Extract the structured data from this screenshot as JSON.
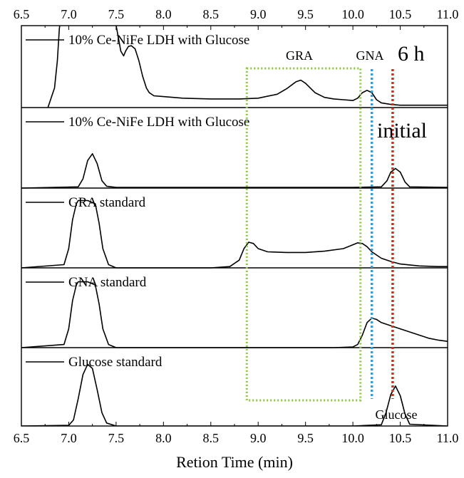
{
  "chart_data": {
    "type": "line",
    "xlabel": "Retion Time (min)",
    "xlim": [
      6.5,
      11.0
    ],
    "xticks": [
      "6.5",
      "7.0",
      "7.5",
      "8.0",
      "8.5",
      "9.0",
      "9.5",
      "10.0",
      "10.5",
      "11.0"
    ],
    "grid": false,
    "panels": [
      {
        "legend": "10% Ce-NiFe LDH with Glucose",
        "tag": "6 h",
        "annotations": [
          "GRA",
          "GNA"
        ],
        "x": [
          6.78,
          6.85,
          6.88,
          6.9,
          6.92,
          7.0,
          7.2,
          7.4,
          7.5,
          7.55,
          7.58,
          7.6,
          7.63,
          7.66,
          7.7,
          7.74,
          7.78,
          7.82,
          7.85,
          7.9,
          8.0,
          8.2,
          8.5,
          8.8,
          9.0,
          9.2,
          9.3,
          9.4,
          9.45,
          9.5,
          9.6,
          9.7,
          9.8,
          9.9,
          10.0,
          10.05,
          10.1,
          10.15,
          10.2,
          10.25,
          10.3,
          10.4,
          10.5,
          10.7,
          11.0
        ],
        "y": [
          0.0,
          0.25,
          0.6,
          1.0,
          1.2,
          1.35,
          1.3,
          1.2,
          1.05,
          0.72,
          0.66,
          0.72,
          0.78,
          0.79,
          0.75,
          0.6,
          0.4,
          0.25,
          0.19,
          0.15,
          0.14,
          0.12,
          0.11,
          0.11,
          0.12,
          0.17,
          0.24,
          0.33,
          0.35,
          0.31,
          0.19,
          0.13,
          0.11,
          0.1,
          0.09,
          0.12,
          0.19,
          0.22,
          0.19,
          0.1,
          0.06,
          0.04,
          0.03,
          0.03,
          0.03
        ]
      },
      {
        "legend": "10% Ce-NiFe LDH with Glucose",
        "tag": "initial",
        "x": [
          6.5,
          7.1,
          7.15,
          7.2,
          7.25,
          7.3,
          7.35,
          7.4,
          7.5,
          8.0,
          9.0,
          10.0,
          10.3,
          10.36,
          10.4,
          10.45,
          10.5,
          10.55,
          10.6,
          11.0
        ],
        "y": [
          0.0,
          0.02,
          0.15,
          0.45,
          0.56,
          0.4,
          0.12,
          0.03,
          0.01,
          0.01,
          0.01,
          0.01,
          0.02,
          0.12,
          0.26,
          0.32,
          0.26,
          0.1,
          0.02,
          0.01
        ]
      },
      {
        "legend": "GRA standard",
        "x": [
          6.5,
          6.95,
          7.0,
          7.04,
          7.08,
          7.1,
          7.2,
          7.28,
          7.32,
          7.36,
          7.42,
          7.5,
          8.0,
          8.5,
          8.7,
          8.8,
          8.85,
          8.9,
          8.95,
          9.0,
          9.1,
          9.3,
          9.5,
          9.7,
          9.9,
          10.0,
          10.05,
          10.1,
          10.15,
          10.2,
          10.3,
          10.4,
          10.5,
          10.7,
          10.9,
          11.0
        ],
        "y": [
          0.0,
          0.05,
          0.3,
          0.75,
          1.0,
          1.05,
          1.05,
          1.0,
          0.7,
          0.3,
          0.05,
          0.0,
          0.0,
          0.0,
          0.02,
          0.12,
          0.3,
          0.4,
          0.38,
          0.3,
          0.25,
          0.24,
          0.24,
          0.26,
          0.3,
          0.36,
          0.39,
          0.38,
          0.33,
          0.25,
          0.15,
          0.1,
          0.06,
          0.03,
          0.02,
          0.02
        ]
      },
      {
        "legend": "GNA standard",
        "x": [
          6.5,
          6.95,
          7.0,
          7.04,
          7.08,
          7.1,
          7.2,
          7.28,
          7.32,
          7.36,
          7.42,
          7.5,
          8.0,
          9.0,
          9.8,
          10.0,
          10.05,
          10.1,
          10.15,
          10.2,
          10.25,
          10.3,
          10.4,
          10.5,
          10.6,
          10.7,
          10.8,
          10.9,
          11.0
        ],
        "y": [
          0.0,
          0.05,
          0.3,
          0.75,
          1.0,
          1.05,
          1.05,
          1.0,
          0.7,
          0.3,
          0.05,
          0.0,
          0.0,
          0.0,
          0.0,
          0.01,
          0.05,
          0.2,
          0.4,
          0.47,
          0.45,
          0.4,
          0.35,
          0.3,
          0.25,
          0.2,
          0.15,
          0.12,
          0.1
        ]
      },
      {
        "legend": "Glucose standard",
        "annotations": [
          "Glucose"
        ],
        "x": [
          6.5,
          7.0,
          7.05,
          7.1,
          7.15,
          7.2,
          7.25,
          7.3,
          7.35,
          7.4,
          7.5,
          8.0,
          9.0,
          10.0,
          10.3,
          10.35,
          10.4,
          10.45,
          10.5,
          10.55,
          10.6,
          11.0
        ],
        "y": [
          0.0,
          0.01,
          0.1,
          0.45,
          0.85,
          1.02,
          0.95,
          0.6,
          0.22,
          0.05,
          0.0,
          0.0,
          0.0,
          0.0,
          0.02,
          0.22,
          0.52,
          0.66,
          0.5,
          0.2,
          0.03,
          0.0
        ]
      }
    ],
    "markers": [
      {
        "type": "box",
        "x0": 8.88,
        "x1": 10.08,
        "color": "#8cc63e",
        "style": "dotted"
      },
      {
        "type": "vline",
        "x": 10.2,
        "color": "#29a3e0",
        "style": "dotted"
      },
      {
        "type": "vline",
        "x": 10.42,
        "color": "#e8231a",
        "style": "dotted"
      }
    ]
  }
}
